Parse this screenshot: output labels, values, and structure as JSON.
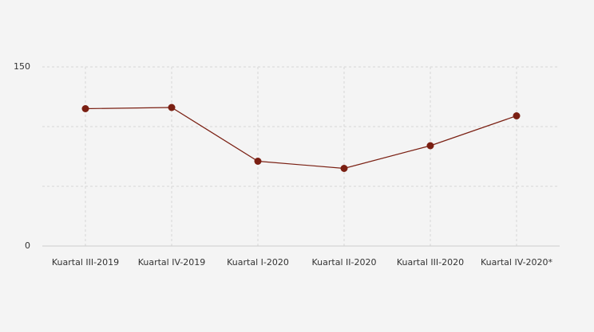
{
  "chart_data": {
    "type": "line",
    "categories": [
      "Kuartal III-2019",
      "Kuartal IV-2019",
      "Kuartal I-2020",
      "Kuartal II-2020",
      "Kuartal III-2020",
      "Kuartal IV-2020*"
    ],
    "series": [
      {
        "color": "#7a1f12",
        "values": [
          115,
          116,
          71,
          65,
          84,
          109
        ]
      }
    ],
    "ylim": [
      0,
      150
    ],
    "yticks": [
      0,
      150
    ],
    "ygrid": [
      0,
      50,
      100,
      150
    ],
    "grid": true
  }
}
